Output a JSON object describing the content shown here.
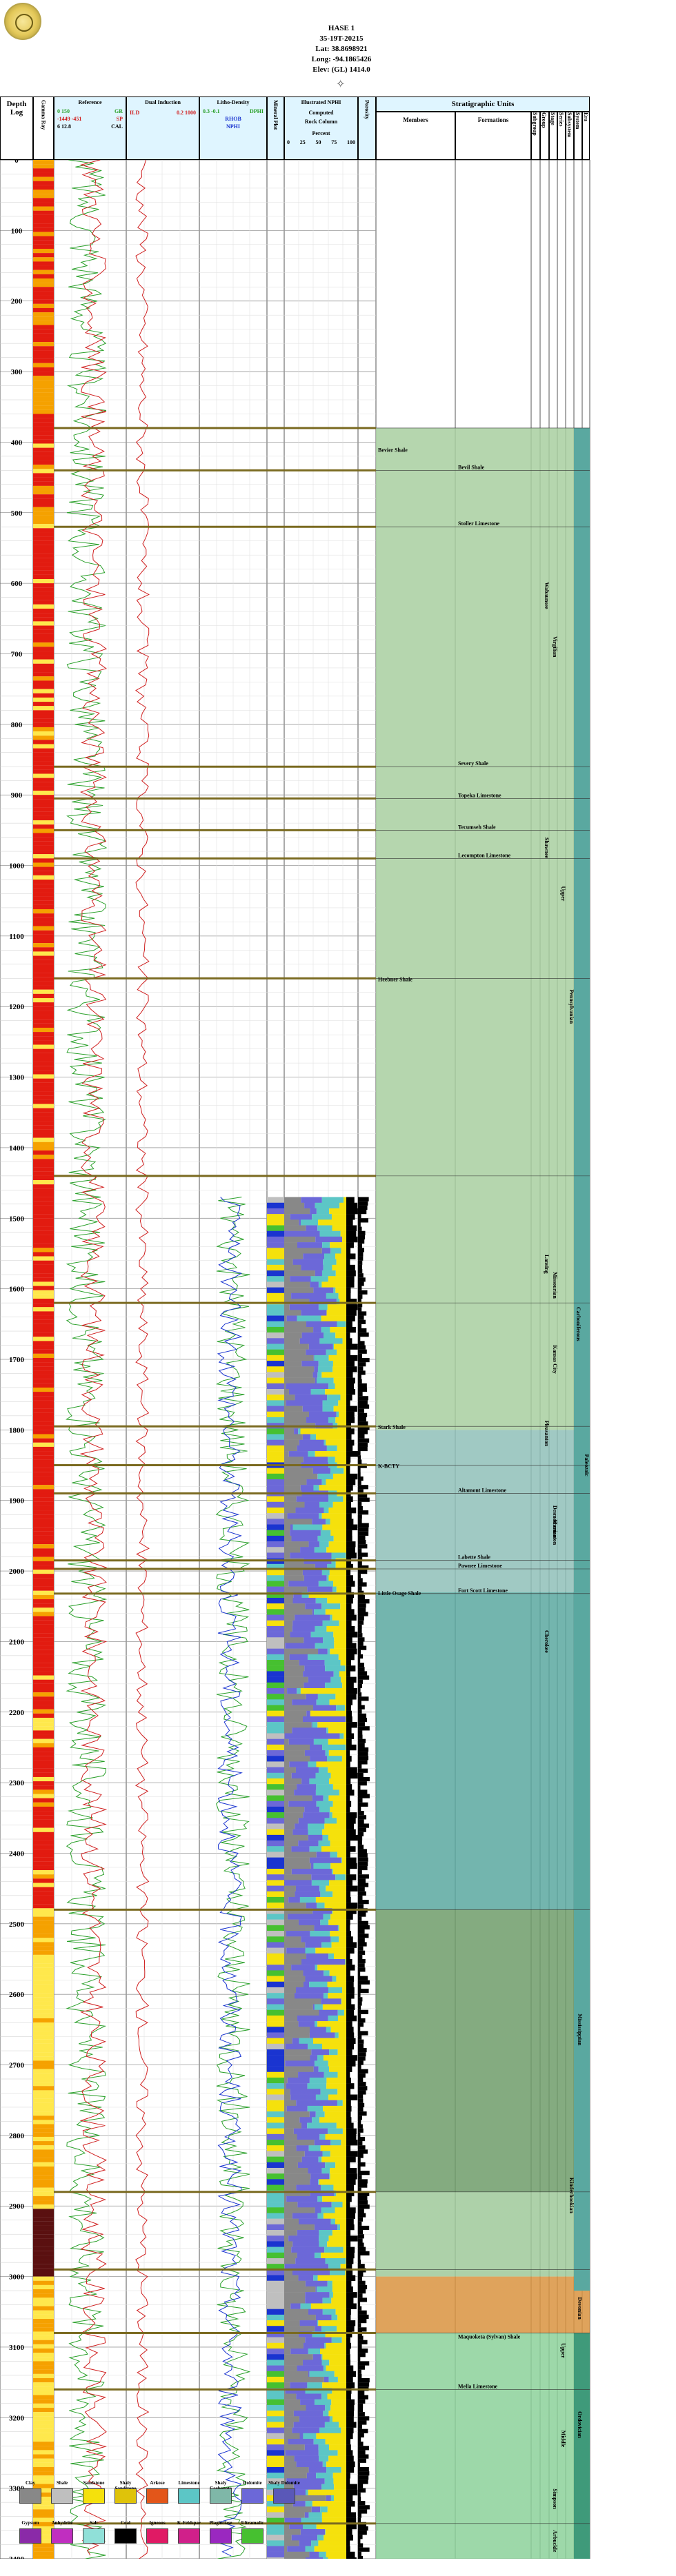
{
  "well": {
    "name": "HASE 1",
    "location": "35-19T-20215",
    "lat": "Lat: 38.8698921",
    "long": "Long: -94.1865426",
    "elev": "Elev: (GL) 1414.0"
  },
  "headers": {
    "depth": "Depth",
    "log": "Log",
    "gamma_ray": "Gamma Ray",
    "reference": "Reference",
    "ref_curves": [
      "GR",
      "SP",
      "CAL"
    ],
    "ref_scales": [
      "0 150",
      "-1449 -451",
      "6 12.8"
    ],
    "dual_induction": "Dual Induction",
    "di_curves": [
      "ILD",
      "ILM"
    ],
    "di_scale": "0.2 1000",
    "litho_density": "Litho-Density",
    "ld_curves": [
      "DPHI",
      "RHOB",
      "NPHI"
    ],
    "ld_scale": "0.3 -0.1",
    "mineral": "Mineral Plot",
    "kgs": "KGS DPHI",
    "illustrated": "Illustrated NPHI",
    "computed": "Computed",
    "rock_column": "Rock Column",
    "percent": "Percent",
    "pct_ticks": [
      "0",
      "25",
      "50",
      "75",
      "100"
    ],
    "porosity": "Porosity",
    "saturation": "Saturation",
    "strat_units": "Stratigraphic Units",
    "members": "Members",
    "formations": "Formations",
    "subgroup": "Subgroup",
    "group": "Group",
    "stage": "Stage",
    "series": "Series",
    "subsystem": "Subsystem",
    "system": "System",
    "era": "Era"
  },
  "depths": [
    "0",
    "100",
    "200",
    "300",
    "400",
    "500",
    "600",
    "700",
    "800",
    "900",
    "1000",
    "1100",
    "1200",
    "1300",
    "1400",
    "1500",
    "1600",
    "1700",
    "1800",
    "1900",
    "2000",
    "2100",
    "2200",
    "2300",
    "2400",
    "2500",
    "2600",
    "2700",
    "2800",
    "2900",
    "3000",
    "3100",
    "3200",
    "3300",
    "3400"
  ],
  "members": [
    {
      "name": "Bevier Shale",
      "depth": 410
    },
    {
      "name": "Heebner Shale",
      "depth": 1160
    },
    {
      "name": "Stark Shale",
      "depth": 1795
    },
    {
      "name": "K-BCTY",
      "depth": 1850
    },
    {
      "name": "Little Osage Shale",
      "depth": 2030
    }
  ],
  "formations": [
    {
      "name": "Bevil Shale",
      "depth": 440
    },
    {
      "name": "Stoller Limestone",
      "depth": 520
    },
    {
      "name": "Severy Shale",
      "depth": 860
    },
    {
      "name": "Topeka Limestone",
      "depth": 905
    },
    {
      "name": "Tecumseh Shale",
      "depth": 950
    },
    {
      "name": "Lecompton Limestone",
      "depth": 990
    },
    {
      "name": "Altamont Limestone",
      "depth": 1890
    },
    {
      "name": "Labette Shale",
      "depth": 1985
    },
    {
      "name": "Pawnee Limestone",
      "depth": 1997
    },
    {
      "name": "Fort Scott Limestone",
      "depth": 2032
    },
    {
      "name": "Maquoketa (Sylvan) Shale",
      "depth": 3090
    },
    {
      "name": "Mella Limestone",
      "depth": 3160
    }
  ],
  "units": [
    {
      "name": "Wabaunsee",
      "top": 545,
      "bottom": 690
    },
    {
      "name": "Shawnee",
      "top": 860,
      "bottom": 1090
    },
    {
      "name": "Lansing",
      "top": 1490,
      "bottom": 1640
    },
    {
      "name": "Kansas City",
      "top": 1640,
      "bottom": 1760
    },
    {
      "name": "Pleasanton",
      "top": 1770,
      "bottom": 1840
    },
    {
      "name": "Marmaton",
      "top": 1880,
      "bottom": 2010
    },
    {
      "name": "Cherokee",
      "top": 2040,
      "bottom": 2160
    },
    {
      "name": "Virgilian",
      "top": 600,
      "bottom": 780
    },
    {
      "name": "Missourian",
      "top": 1490,
      "bottom": 1700
    },
    {
      "name": "Desmoinesian",
      "top": 1850,
      "bottom": 2010
    },
    {
      "name": "Upper",
      "top": 1000,
      "bottom": 1080
    },
    {
      "name": "Pennsylvanian",
      "top": 1100,
      "bottom": 1300
    },
    {
      "name": "Carboniferous",
      "top": 1550,
      "bottom": 1750
    },
    {
      "name": "Mississippian",
      "top": 2500,
      "bottom": 2800
    },
    {
      "name": "Kinderhookian",
      "top": 2820,
      "bottom": 2950
    },
    {
      "name": "Devonian",
      "top": 3000,
      "bottom": 3090
    },
    {
      "name": "Upper",
      "top": 3080,
      "bottom": 3130
    },
    {
      "name": "Middle",
      "top": 3200,
      "bottom": 3260
    },
    {
      "name": "Ordovician",
      "top": 3150,
      "bottom": 3270
    },
    {
      "name": "Simpson",
      "top": 3280,
      "bottom": 3350
    },
    {
      "name": "Arbuckle",
      "top": 3350,
      "bottom": 3400
    },
    {
      "name": "Paleozoic",
      "top": 1800,
      "bottom": 1900
    }
  ],
  "legend": [
    {
      "label": "Clay",
      "color": "#888888"
    },
    {
      "label": "Shale",
      "color": "#bfbfbf"
    },
    {
      "label": "Sandstone",
      "color": "#f5e10c"
    },
    {
      "label": "Shaly Sandstone",
      "color": "#dfc30a"
    },
    {
      "label": "Arkose",
      "color": "#e3561a"
    },
    {
      "label": "Limestone",
      "color": "#5cc6c6"
    },
    {
      "label": "Shaly Carbonate",
      "color": "#7fb7a8"
    },
    {
      "label": "Dolomite",
      "color": "#6c68d8"
    },
    {
      "label": "Shaly Dolomite",
      "color": "#5a58b8"
    },
    {
      "label": "Gypsum",
      "color": "#8a2aa8"
    },
    {
      "label": "Anhydrite",
      "color": "#c02ec0"
    },
    {
      "label": "Salt",
      "color": "#90e0d8"
    },
    {
      "label": "Coal",
      "color": "#000000"
    },
    {
      "label": "Igneous",
      "color": "#e01a64"
    },
    {
      "label": "K-Feldspar",
      "color": "#d0208a"
    },
    {
      "label": "Plagioclase",
      "color": "#9a28c0"
    },
    {
      "label": "Ultramafic",
      "color": "#46c030"
    }
  ],
  "colors": {
    "header_bg": "#dff5ff",
    "formation_line": "#7a6a20",
    "gr_hot": "#e21b10",
    "gr_warm": "#f5a100",
    "gr_pale": "#ffe84c",
    "ref_gr": "#2aa02a",
    "ref_sp": "#d02020",
    "ild": "#d02020",
    "strat_green": "#a8cfa0",
    "strat_teal": "#5aa8a0",
    "strat_darkgreen": "#6e9c6a",
    "strat_orange": "#d99340",
    "strat_lime": "#8cd19a"
  }
}
